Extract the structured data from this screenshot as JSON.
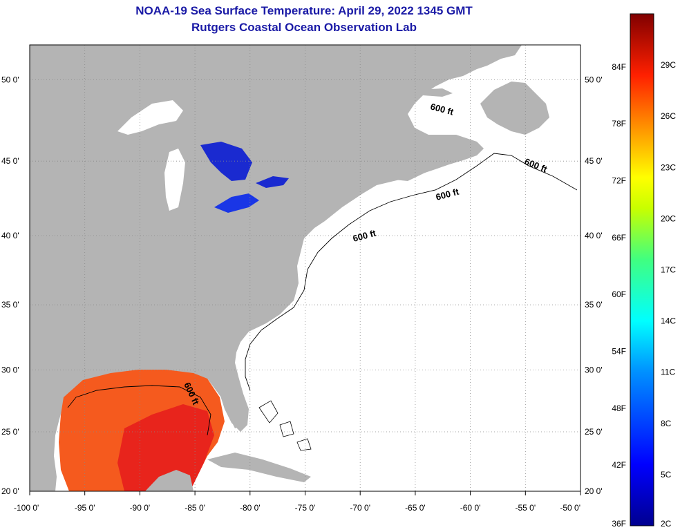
{
  "title": "NOAA-19 Sea Surface Temperature:  April 29, 2022 1345 GMT",
  "subtitle": "Rutgers Coastal Ocean Observation Lab",
  "colors": {
    "land": "#b4b4b4",
    "ocean": "#ffffff",
    "title": "#1a1aa6",
    "grid": "#888888"
  },
  "map": {
    "lon_range": [
      -100,
      -50
    ],
    "lat_range": [
      20,
      52
    ],
    "lon_ticks": [
      "-100 0'",
      "-95 0'",
      "-90 0'",
      "-85 0'",
      "-80 0'",
      "-75 0'",
      "-70 0'",
      "-65 0'",
      "-60 0'",
      "-55 0'",
      "-50 0'"
    ],
    "lat_ticks": [
      "20 0'",
      "25 0'",
      "30 0'",
      "35 0'",
      "40 0'",
      "45 0'",
      "50 0'"
    ],
    "contour_labels": [
      "600 ft",
      "600 ft",
      "600 ft",
      "600 ft",
      "600 ft"
    ]
  },
  "colorbar": {
    "fahrenheit_labels": [
      "84F",
      "78F",
      "72F",
      "66F",
      "60F",
      "54F",
      "48F",
      "42F",
      "36F"
    ],
    "celsius_labels": [
      "29C",
      "26C",
      "23C",
      "20C",
      "17C",
      "14C",
      "11C",
      "8C",
      "5C",
      "2C"
    ]
  }
}
